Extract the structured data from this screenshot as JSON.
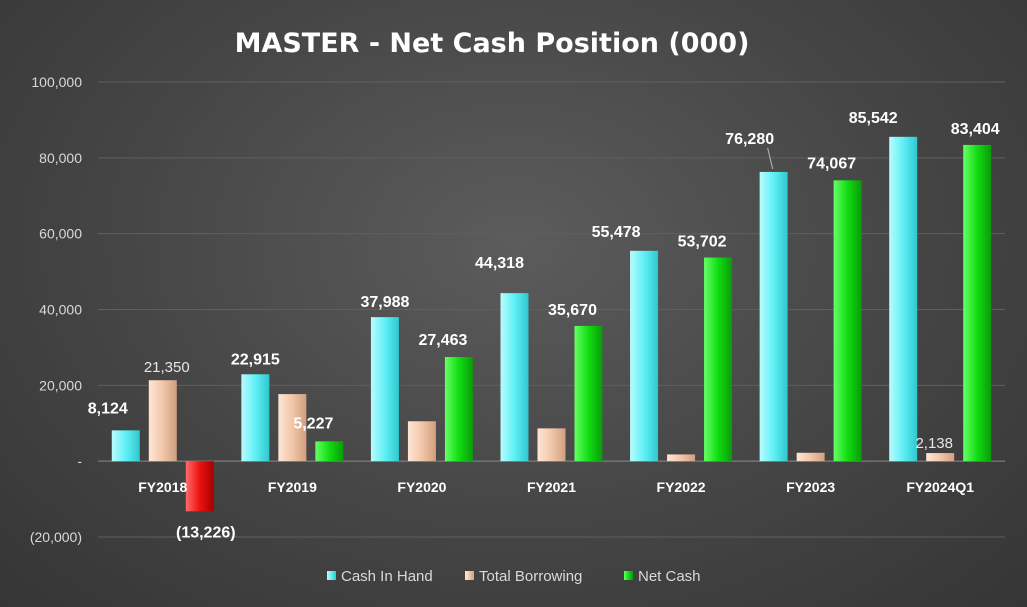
{
  "chart_data": {
    "type": "bar",
    "title": "MASTER - Net Cash Position (000)",
    "xlabel": "",
    "ylabel": "",
    "categories": [
      "FY2018",
      "FY2019",
      "FY2020",
      "FY2021",
      "FY2022",
      "FY2023",
      "FY2024Q1"
    ],
    "ylim": [
      -20000,
      100000
    ],
    "yticks": [
      -20000,
      0,
      20000,
      40000,
      60000,
      80000,
      100000
    ],
    "ytick_labels": [
      "(20,000)",
      "-",
      "20,000",
      "40,000",
      "60,000",
      "80,000",
      "100,000"
    ],
    "grid": true,
    "legend_position": "bottom",
    "series": [
      {
        "name": "Cash In Hand",
        "color": "#5ff0f5",
        "values": [
          8124,
          22915,
          37988,
          44318,
          55478,
          76280,
          85542
        ],
        "labels": [
          "8,124",
          "22,915",
          "37,988",
          "44,318",
          "55,478",
          "76,280",
          "85,542"
        ]
      },
      {
        "name": "Total Borrowing",
        "color": "#f2c6a8",
        "values": [
          21350,
          17688,
          10525,
          8648,
          1776,
          2213,
          2138
        ],
        "labels": [
          "21,350",
          "",
          "",
          "",
          "",
          "",
          "2,138"
        ]
      },
      {
        "name": "Net Cash",
        "color": "#11dd11",
        "negative_color": "#ee1111",
        "values": [
          -13226,
          5227,
          27463,
          35670,
          53702,
          74067,
          83404
        ],
        "labels": [
          "(13,226)",
          "5,227",
          "27,463",
          "35,670",
          "53,702",
          "74,067",
          "83,404"
        ]
      }
    ]
  }
}
